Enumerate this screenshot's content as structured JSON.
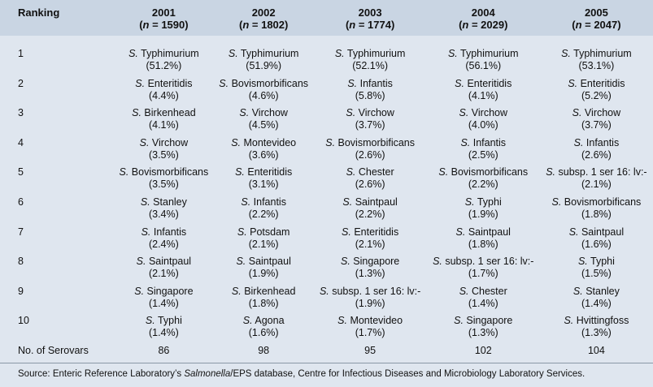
{
  "header": {
    "ranking_label": "Ranking",
    "years": [
      {
        "year": "2001",
        "n_prefix": "(",
        "n_var": "n",
        "n_value": " = 1590)"
      },
      {
        "year": "2002",
        "n_prefix": "(",
        "n_var": "n",
        "n_value": " = 1802)"
      },
      {
        "year": "2003",
        "n_prefix": "(",
        "n_var": "n",
        "n_value": " = 1774)"
      },
      {
        "year": "2004",
        "n_prefix": "(",
        "n_var": "n",
        "n_value": " = 2029)"
      },
      {
        "year": "2005",
        "n_prefix": "(",
        "n_var": "n",
        "n_value": " = 2047)"
      }
    ]
  },
  "rows": [
    {
      "rank": "1",
      "cells": [
        {
          "genus": "S.",
          "name": " Typhimurium",
          "pct": "(51.2%)"
        },
        {
          "genus": "S.",
          "name": " Typhimurium",
          "pct": "(51.9%)"
        },
        {
          "genus": "S.",
          "name": " Typhimurium",
          "pct": "(52.1%)"
        },
        {
          "genus": "S.",
          "name": " Typhimurium",
          "pct": "(56.1%)"
        },
        {
          "genus": "S.",
          "name": " Typhimurium",
          "pct": "(53.1%)"
        }
      ]
    },
    {
      "rank": "2",
      "cells": [
        {
          "genus": "S.",
          "name": " Enteritidis",
          "pct": "(4.4%)"
        },
        {
          "genus": "S.",
          "name": " Bovismorbificans",
          "pct": "(4.6%)"
        },
        {
          "genus": "S.",
          "name": " Infantis",
          "pct": "(5.8%)"
        },
        {
          "genus": "S.",
          "name": " Enteritidis",
          "pct": "(4.1%)"
        },
        {
          "genus": "S.",
          "name": " Enteritidis",
          "pct": "(5.2%)"
        }
      ]
    },
    {
      "rank": "3",
      "cells": [
        {
          "genus": "S.",
          "name": " Birkenhead",
          "pct": "(4.1%)"
        },
        {
          "genus": "S.",
          "name": " Virchow",
          "pct": "(4.5%)"
        },
        {
          "genus": "S.",
          "name": " Virchow",
          "pct": "(3.7%)"
        },
        {
          "genus": "S.",
          "name": " Virchow",
          "pct": "(4.0%)"
        },
        {
          "genus": "S.",
          "name": " Virchow",
          "pct": "(3.7%)"
        }
      ]
    },
    {
      "rank": "4",
      "cells": [
        {
          "genus": "S.",
          "name": " Virchow",
          "pct": "(3.5%)"
        },
        {
          "genus": "S.",
          "name": " Montevideo",
          "pct": "(3.6%)"
        },
        {
          "genus": "S.",
          "name": " Bovismorbificans",
          "pct": "(2.6%)"
        },
        {
          "genus": "S.",
          "name": " Infantis",
          "pct": "(2.5%)"
        },
        {
          "genus": "S.",
          "name": " Infantis",
          "pct": "(2.6%)"
        }
      ]
    },
    {
      "rank": "5",
      "cells": [
        {
          "genus": "S.",
          "name": " Bovismorbificans",
          "pct": "(3.5%)"
        },
        {
          "genus": "S.",
          "name": " Enteritidis",
          "pct": "(3.1%)"
        },
        {
          "genus": "S.",
          "name": " Chester",
          "pct": "(2.6%)"
        },
        {
          "genus": "S.",
          "name": " Bovismorbificans",
          "pct": "(2.2%)"
        },
        {
          "genus": "S.",
          "name": " subsp. 1 ser 16: lv:-",
          "pct": "(2.1%)"
        }
      ]
    },
    {
      "rank": "6",
      "cells": [
        {
          "genus": "S.",
          "name": " Stanley",
          "pct": "(3.4%)"
        },
        {
          "genus": "S.",
          "name": " Infantis",
          "pct": "(2.2%)"
        },
        {
          "genus": "S.",
          "name": " Saintpaul",
          "pct": "(2.2%)"
        },
        {
          "genus": "S.",
          "name": " Typhi",
          "pct": "(1.9%)"
        },
        {
          "genus": "S.",
          "name": " Bovismorbificans",
          "pct": "(1.8%)"
        }
      ]
    },
    {
      "rank": "7",
      "cells": [
        {
          "genus": "S.",
          "name": " Infantis",
          "pct": "(2.4%)"
        },
        {
          "genus": "S.",
          "name": " Potsdam",
          "pct": "(2.1%)"
        },
        {
          "genus": "S.",
          "name": " Enteritidis",
          "pct": "(2.1%)"
        },
        {
          "genus": "S.",
          "name": " Saintpaul",
          "pct": "(1.8%)"
        },
        {
          "genus": "S.",
          "name": " Saintpaul",
          "pct": "(1.6%)"
        }
      ]
    },
    {
      "rank": "8",
      "cells": [
        {
          "genus": "S.",
          "name": " Saintpaul",
          "pct": "(2.1%)"
        },
        {
          "genus": "S.",
          "name": " Saintpaul",
          "pct": "(1.9%)"
        },
        {
          "genus": "S.",
          "name": " Singapore",
          "pct": "(1.3%)"
        },
        {
          "genus": "S.",
          "name": " subsp. 1 ser 16: lv:-",
          "pct": "(1.7%)"
        },
        {
          "genus": "S.",
          "name": " Typhi",
          "pct": "(1.5%)"
        }
      ]
    },
    {
      "rank": "9",
      "cells": [
        {
          "genus": "S.",
          "name": " Singapore",
          "pct": "(1.4%)"
        },
        {
          "genus": "S.",
          "name": " Birkenhead",
          "pct": "(1.8%)"
        },
        {
          "genus": "S.",
          "name": " subsp. 1 ser 16: lv:-",
          "pct": "(1.9%)"
        },
        {
          "genus": "S.",
          "name": " Chester",
          "pct": "(1.4%)"
        },
        {
          "genus": "S.",
          "name": " Stanley",
          "pct": "(1.4%)"
        }
      ]
    },
    {
      "rank": "10",
      "cells": [
        {
          "genus": "S.",
          "name": " Typhi",
          "pct": "(1.4%)"
        },
        {
          "genus": "S.",
          "name": " Agona",
          "pct": "(1.6%)"
        },
        {
          "genus": "S.",
          "name": " Montevideo",
          "pct": "(1.7%)"
        },
        {
          "genus": "S.",
          "name": " Singapore",
          "pct": "(1.3%)"
        },
        {
          "genus": "S.",
          "name": " Hvittingfoss",
          "pct": "(1.3%)"
        }
      ]
    }
  ],
  "serovars": {
    "label": "No. of Serovars",
    "values": [
      "86",
      "98",
      "95",
      "102",
      "104"
    ]
  },
  "source": {
    "prefix": "Source: Enteric Reference Laboratory’s ",
    "italic": "Salmonella",
    "suffix": "/EPS database, Centre for Infectious Diseases and Microbiology Laboratory Services."
  },
  "colors": {
    "panel_background": "#dfe6ef",
    "header_background": "#c9d5e3"
  }
}
